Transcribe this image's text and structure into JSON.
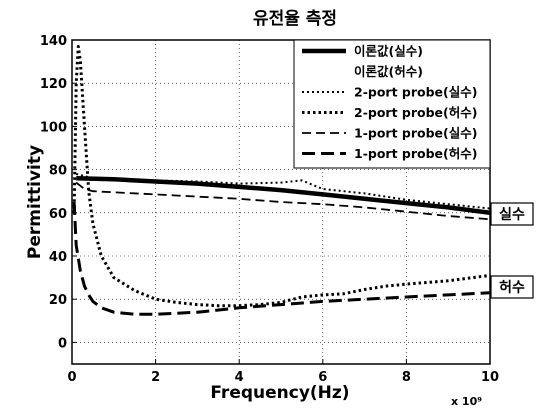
{
  "chart_data": {
    "type": "line",
    "title": "유전율 측정",
    "xlabel": "Frequency(Hz)",
    "ylabel": "Permittivity",
    "x_multiplier": "x 10⁹",
    "xlim": [
      0,
      10
    ],
    "ylim": [
      -10,
      140
    ],
    "xticks": [
      "0",
      "2",
      "4",
      "6",
      "8",
      "10"
    ],
    "yticks": [
      "0",
      "20",
      "40",
      "60",
      "80",
      "100",
      "120",
      "140"
    ],
    "grid": true,
    "legend_position": "top-right",
    "annotations": {
      "real": "실수",
      "imag": "허수"
    },
    "series": [
      {
        "name": "이론값(실수)",
        "style": "solid-thick",
        "x": [
          0.1,
          1,
          2,
          3,
          4,
          5,
          6,
          7,
          8,
          9,
          10
        ],
        "y": [
          76,
          75.5,
          74.5,
          73.5,
          72,
          70.5,
          68.5,
          66.5,
          64.5,
          62.5,
          60
        ]
      },
      {
        "name": "이론값(허수)",
        "style": "none",
        "x": [],
        "y": []
      },
      {
        "name": "2-port probe(실수)",
        "style": "dotted-thin",
        "x": [
          0.1,
          0.3,
          0.5,
          1,
          2,
          3,
          4,
          5,
          5.5,
          6,
          7,
          8,
          9,
          10
        ],
        "y": [
          78,
          77,
          76,
          75.5,
          75,
          74.5,
          73.5,
          74,
          75,
          71,
          69,
          66,
          64,
          62
        ]
      },
      {
        "name": "2-port probe(허수)",
        "style": "dotted-thick",
        "x": [
          0.05,
          0.1,
          0.15,
          0.2,
          0.3,
          0.4,
          0.5,
          0.7,
          1,
          1.5,
          2,
          2.5,
          3,
          3.5,
          4,
          4.5,
          5,
          5.5,
          6,
          6.5,
          7,
          7.5,
          8,
          9,
          10
        ],
        "y": [
          60,
          120,
          137,
          130,
          100,
          70,
          55,
          40,
          30,
          24,
          20,
          18.5,
          17.5,
          17,
          17,
          17.5,
          18.5,
          21,
          22,
          22.5,
          24.5,
          26,
          27,
          28.5,
          31
        ]
      },
      {
        "name": "1-port probe(실수)",
        "style": "dashed-thin",
        "x": [
          0.1,
          0.3,
          0.5,
          1,
          2,
          3,
          4,
          5,
          6,
          7,
          8,
          9,
          10
        ],
        "y": [
          74,
          71,
          70,
          69.5,
          68.5,
          67.5,
          66.5,
          65,
          64,
          62.5,
          60.5,
          58.5,
          57
        ]
      },
      {
        "name": "1-port probe(허수)",
        "style": "dashed-thick",
        "x": [
          0.05,
          0.1,
          0.2,
          0.3,
          0.4,
          0.5,
          0.7,
          1,
          1.5,
          2,
          3,
          4,
          5,
          6,
          7,
          8,
          9,
          10
        ],
        "y": [
          65,
          45,
          33,
          26,
          22,
          19,
          16,
          14,
          13,
          13,
          14,
          16,
          17.5,
          19,
          20,
          21,
          22,
          23
        ]
      }
    ]
  }
}
